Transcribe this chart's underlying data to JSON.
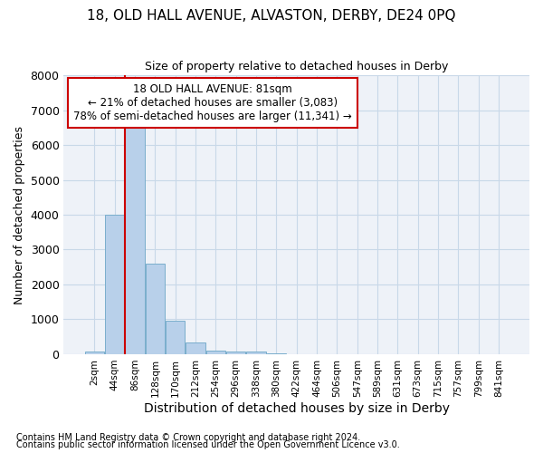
{
  "title1": "18, OLD HALL AVENUE, ALVASTON, DERBY, DE24 0PQ",
  "title2": "Size of property relative to detached houses in Derby",
  "xlabel": "Distribution of detached houses by size in Derby",
  "ylabel": "Number of detached properties",
  "footnote1": "Contains HM Land Registry data © Crown copyright and database right 2024.",
  "footnote2": "Contains public sector information licensed under the Open Government Licence v3.0.",
  "annotation_line1": "18 OLD HALL AVENUE: 81sqm",
  "annotation_line2": "← 21% of detached houses are smaller (3,083)",
  "annotation_line3": "78% of semi-detached houses are larger (11,341) →",
  "categories": [
    "2sqm",
    "44sqm",
    "86sqm",
    "128sqm",
    "170sqm",
    "212sqm",
    "254sqm",
    "296sqm",
    "338sqm",
    "380sqm",
    "422sqm",
    "464sqm",
    "506sqm",
    "547sqm",
    "589sqm",
    "631sqm",
    "673sqm",
    "715sqm",
    "757sqm",
    "799sqm",
    "841sqm"
  ],
  "values": [
    65,
    4000,
    6600,
    2600,
    950,
    330,
    110,
    65,
    65,
    20,
    0,
    0,
    0,
    0,
    0,
    0,
    0,
    0,
    0,
    0,
    0
  ],
  "vline_bar_index": 2,
  "bar_color": "#b8d0ea",
  "bar_edge_color": "#7aaecc",
  "vline_color": "#cc0000",
  "annotation_box_color": "#cc0000",
  "grid_color": "#c8d8e8",
  "background_color": "#eef2f8",
  "ylim": [
    0,
    8000
  ],
  "yticks": [
    0,
    1000,
    2000,
    3000,
    4000,
    5000,
    6000,
    7000,
    8000
  ],
  "title1_fontsize": 11,
  "title2_fontsize": 9,
  "ylabel_fontsize": 9,
  "xlabel_fontsize": 10,
  "annotation_fontsize": 8.5,
  "footnote_fontsize": 7
}
